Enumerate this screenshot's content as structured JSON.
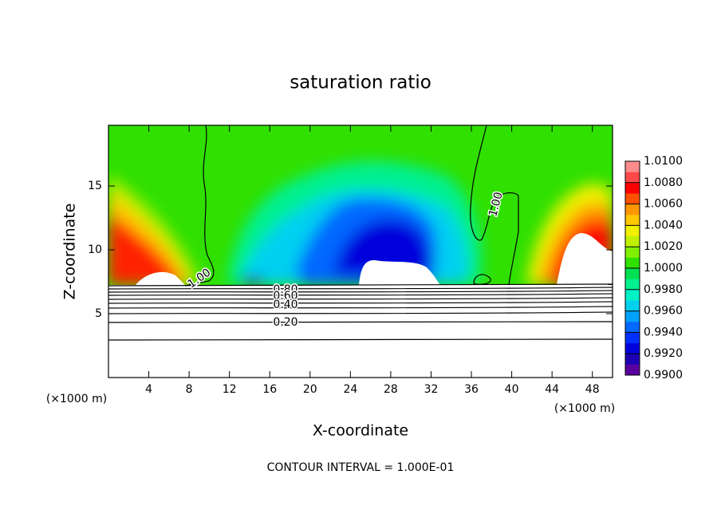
{
  "chart_data": {
    "type": "contour",
    "title": "saturation ratio",
    "x_label": "X-coordinate",
    "y_label": "Z-coordinate",
    "x_unit": "(×1000 m)",
    "y_unit": "(×1000 m)",
    "annotation": "CONTOUR INTERVAL = 1.000E-01",
    "xlim": [
      0,
      50
    ],
    "xticks": [
      4,
      8,
      12,
      16,
      20,
      24,
      28,
      32,
      36,
      40,
      44,
      48
    ],
    "ylim": [
      0,
      19.75
    ],
    "yticks": [
      5,
      10,
      15
    ],
    "colorbar": {
      "lim": [
        0.99,
        1.01
      ],
      "ticks": [
        {
          "value": 0.99,
          "label": "0.9900"
        },
        {
          "value": 0.992,
          "label": "0.9920"
        },
        {
          "value": 0.994,
          "label": "0.9940"
        },
        {
          "value": 0.996,
          "label": "0.9960"
        },
        {
          "value": 0.998,
          "label": "0.9980"
        },
        {
          "value": 1.0,
          "label": "1.0000"
        },
        {
          "value": 1.002,
          "label": "1.0020"
        },
        {
          "value": 1.004,
          "label": "1.0040"
        },
        {
          "value": 1.006,
          "label": "1.0060"
        },
        {
          "value": 1.008,
          "label": "1.0080"
        },
        {
          "value": 1.01,
          "label": "1.0100"
        }
      ],
      "colors": [
        "#5a00a0",
        "#1e00b4",
        "#0000dc",
        "#0030ff",
        "#0068ff",
        "#00a0ff",
        "#00d0f0",
        "#00f0c8",
        "#00f090",
        "#00e050",
        "#30e000",
        "#80f000",
        "#c0f000",
        "#f0f000",
        "#ffc800",
        "#ff9600",
        "#ff5000",
        "#ff0000",
        "#ff4848",
        "#ff8c8c"
      ]
    },
    "contour_labels": [
      {
        "value": 1.0,
        "label": "1.00"
      },
      {
        "value": 1.0,
        "label": "1.00"
      },
      {
        "value": 0.8,
        "label": "0.80"
      },
      {
        "value": 0.6,
        "label": "0.60"
      },
      {
        "value": 0.4,
        "label": "0.40"
      },
      {
        "value": 0.2,
        "label": "0.20"
      }
    ]
  }
}
